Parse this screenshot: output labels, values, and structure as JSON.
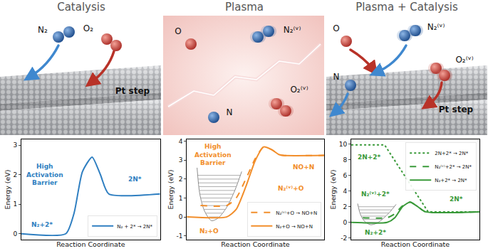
{
  "illustrations": [
    {
      "title": "Catalysis",
      "labels": [
        "N₂",
        "O₂",
        "Pt step"
      ]
    },
    {
      "title": "Plasma",
      "labels": [
        "O",
        "N₂⁽ᵛ⁾",
        "N",
        "O₂⁽ᵛ⁾"
      ]
    },
    {
      "title": "Plasma + Catalysis",
      "labels": [
        "O",
        "N₂⁽ᵛ⁾",
        "N",
        "O₂⁽ᵛ⁾",
        "Pt step"
      ]
    }
  ],
  "chart_data": [
    {
      "type": "line",
      "x_label": "Reaction Coordinate",
      "y_label": "Energy (eV)",
      "xlim": [
        0,
        10
      ],
      "xticks": [],
      "ylim": [
        -0.2,
        3.2
      ],
      "yticks": [
        0,
        1,
        2,
        3
      ],
      "tick_labels": "y",
      "legend": "lower right",
      "series": [
        {
          "name": "N₂ + 2* → 2N*",
          "color": "#2f7fc1",
          "line_style": "solid",
          "x": [
            0,
            3.2,
            3.8,
            4.4,
            5.1,
            5.7,
            6.3,
            10
          ],
          "y": [
            0,
            0,
            0.7,
            2.1,
            2.6,
            2.0,
            1.35,
            1.35
          ]
        }
      ],
      "annotations": [
        {
          "text": "High\nActivation\nBarrier",
          "x": 1.7,
          "y": 2.0,
          "color": "#2f7fc1"
        },
        {
          "text": "N₂+2*",
          "x": 1.5,
          "y": 0.3,
          "color": "#2f7fc1"
        },
        {
          "text": "2N*",
          "x": 8.2,
          "y": 1.85,
          "color": "#2f7fc1"
        }
      ]
    },
    {
      "type": "line",
      "x_label": "Reaction Coordinate",
      "y_label": "Energy (eV)",
      "xlim": [
        0,
        10
      ],
      "xticks": [],
      "ylim": [
        -1.2,
        4.1
      ],
      "yticks": [
        -1,
        0,
        1,
        2,
        3,
        4
      ],
      "tick_labels": "y",
      "legend": "lower right",
      "series": [
        {
          "type": "well",
          "color": "#8c8c8c",
          "x": [
            0.75,
            0.95,
            1.3,
            1.8,
            2.3,
            2.9,
            3.5,
            4.0
          ],
          "y": [
            2.6,
            1.2,
            0.3,
            -0.2,
            -0.05,
            0.5,
            1.4,
            2.4
          ],
          "levels": [
            0.0,
            0.2,
            0.4,
            0.6,
            0.8,
            1.0,
            1.2,
            1.4,
            1.6,
            1.8,
            2.0,
            2.2
          ]
        },
        {
          "name": "N₂⁽ᵛ⁾+O → NO+N",
          "color": "#f28e2b",
          "line_style": "dashed",
          "x": [
            1.0,
            2.9,
            3.6,
            4.3,
            5.0,
            5.6,
            6.2,
            6.7,
            7.0,
            10
          ],
          "y": [
            0.6,
            0.6,
            1.0,
            2.0,
            3.1,
            3.7,
            3.55,
            3.3,
            3.25,
            3.25
          ]
        },
        {
          "name": "N₂+O → NO+N",
          "color": "#f28e2b",
          "line_style": "solid",
          "x": [
            0,
            2.9,
            3.6,
            4.3,
            5.0,
            5.6,
            6.2,
            6.7,
            7.0,
            10
          ],
          "y": [
            0,
            0,
            0.4,
            1.6,
            3.0,
            3.7,
            3.55,
            3.3,
            3.25,
            3.25
          ]
        }
      ],
      "annotations": [
        {
          "text": "High\nActivation\nBarrier",
          "x": 1.9,
          "y": 3.3,
          "color": "#f28e2b"
        },
        {
          "text": "N₂⁽ᵛ⁾+O",
          "x": 7.6,
          "y": 1.5,
          "color": "#f28e2b"
        },
        {
          "text": "NO+N",
          "x": 8.5,
          "y": 2.65,
          "color": "#f28e2b"
        },
        {
          "text": "N₂+O",
          "x": 1.6,
          "y": -0.75,
          "color": "#f28e2b"
        }
      ]
    },
    {
      "type": "line",
      "x_label": "Reaction Coordinate",
      "y_label": "Energy (eV)",
      "xlim": [
        0,
        10
      ],
      "xticks": [],
      "ylim": [
        -2.2,
        10.6
      ],
      "yticks": [
        -2,
        0,
        2,
        4,
        6,
        8,
        10
      ],
      "tick_labels": "y",
      "legend": "upper right",
      "series": [
        {
          "type": "well",
          "color": "#8c8c8c",
          "x": [
            0.5,
            0.7,
            1.0,
            1.5,
            2.0,
            2.5,
            3.0,
            3.5
          ],
          "y": [
            2.4,
            1.1,
            0.2,
            -0.3,
            -0.1,
            0.5,
            1.3,
            2.3
          ],
          "levels": [
            0.0,
            0.4,
            0.8,
            1.2,
            1.6,
            2.0
          ]
        },
        {
          "name": "2N+2* → 2N*",
          "color": "#3a9a3a",
          "line_style": "dotted",
          "x": [
            0,
            2.6,
            6.0,
            10
          ],
          "y": [
            9.9,
            9.9,
            1.35,
            1.35
          ]
        },
        {
          "name": "N₂⁽ᵛ⁾+2* → 2N*",
          "color": "#3a9a3a",
          "line_style": "dashed",
          "x": [
            0.9,
            2.8,
            3.4,
            4.0,
            4.6,
            5.2,
            5.8,
            10
          ],
          "y": [
            0.6,
            0.6,
            1.1,
            2.1,
            2.6,
            2.0,
            1.35,
            1.35
          ]
        },
        {
          "name": "N₂+2* → 2N*",
          "color": "#3a9a3a",
          "line_style": "solid",
          "x": [
            0,
            2.8,
            3.4,
            4.0,
            4.6,
            5.2,
            5.8,
            10
          ],
          "y": [
            0,
            0,
            0.6,
            2.0,
            2.6,
            2.0,
            1.35,
            1.35
          ]
        }
      ],
      "annotations": [
        {
          "text": "2N+2*",
          "x": 1.4,
          "y": 8.3,
          "color": "#3a9a3a"
        },
        {
          "text": "N₂⁽ᵛ⁾+2*",
          "x": 1.9,
          "y": 3.6,
          "color": "#3a9a3a"
        },
        {
          "text": "N₂+2*",
          "x": 1.9,
          "y": -1.3,
          "color": "#3a9a3a"
        },
        {
          "text": "2N*",
          "x": 8.2,
          "y": 3.0,
          "color": "#3a9a3a"
        }
      ]
    }
  ]
}
